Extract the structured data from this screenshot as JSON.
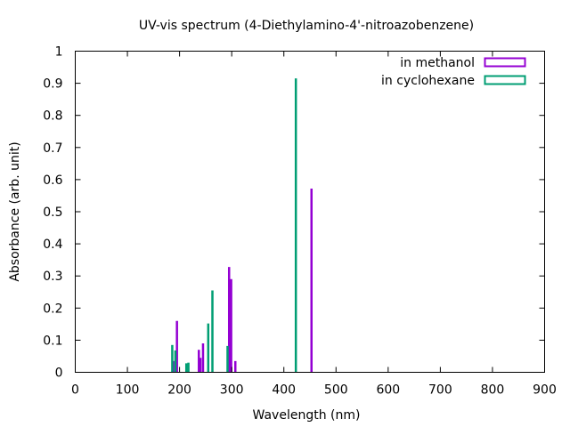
{
  "chart_data": {
    "type": "bar",
    "title": "UV-vis spectrum (4-Diethylamino-4'-nitroazobenzene)",
    "xlabel": "Wavelength (nm)",
    "ylabel": "Absorbance (arb. unit)",
    "xlim": [
      0,
      900
    ],
    "ylim": [
      0,
      1
    ],
    "xticks": [
      0,
      100,
      200,
      300,
      400,
      500,
      600,
      700,
      800,
      900
    ],
    "yticks": [
      0,
      0.1,
      0.2,
      0.3,
      0.4,
      0.5,
      0.6,
      0.7,
      0.8,
      0.9,
      1
    ],
    "grid": false,
    "legend_position": "top-right",
    "series": [
      {
        "name": "in methanol",
        "color": "#9400d3",
        "points": [
          {
            "x": 188,
            "y": 0.035
          },
          {
            "x": 195,
            "y": 0.16
          },
          {
            "x": 237,
            "y": 0.07
          },
          {
            "x": 240,
            "y": 0.045
          },
          {
            "x": 245,
            "y": 0.09
          },
          {
            "x": 295,
            "y": 0.328
          },
          {
            "x": 299,
            "y": 0.29
          },
          {
            "x": 307,
            "y": 0.035
          },
          {
            "x": 453,
            "y": 0.572
          }
        ]
      },
      {
        "name": "in cyclohexane",
        "color": "#009e73",
        "points": [
          {
            "x": 186,
            "y": 0.085
          },
          {
            "x": 192,
            "y": 0.068
          },
          {
            "x": 213,
            "y": 0.028
          },
          {
            "x": 217,
            "y": 0.03
          },
          {
            "x": 255,
            "y": 0.152
          },
          {
            "x": 263,
            "y": 0.255
          },
          {
            "x": 292,
            "y": 0.082
          },
          {
            "x": 423,
            "y": 0.915
          }
        ]
      }
    ]
  }
}
